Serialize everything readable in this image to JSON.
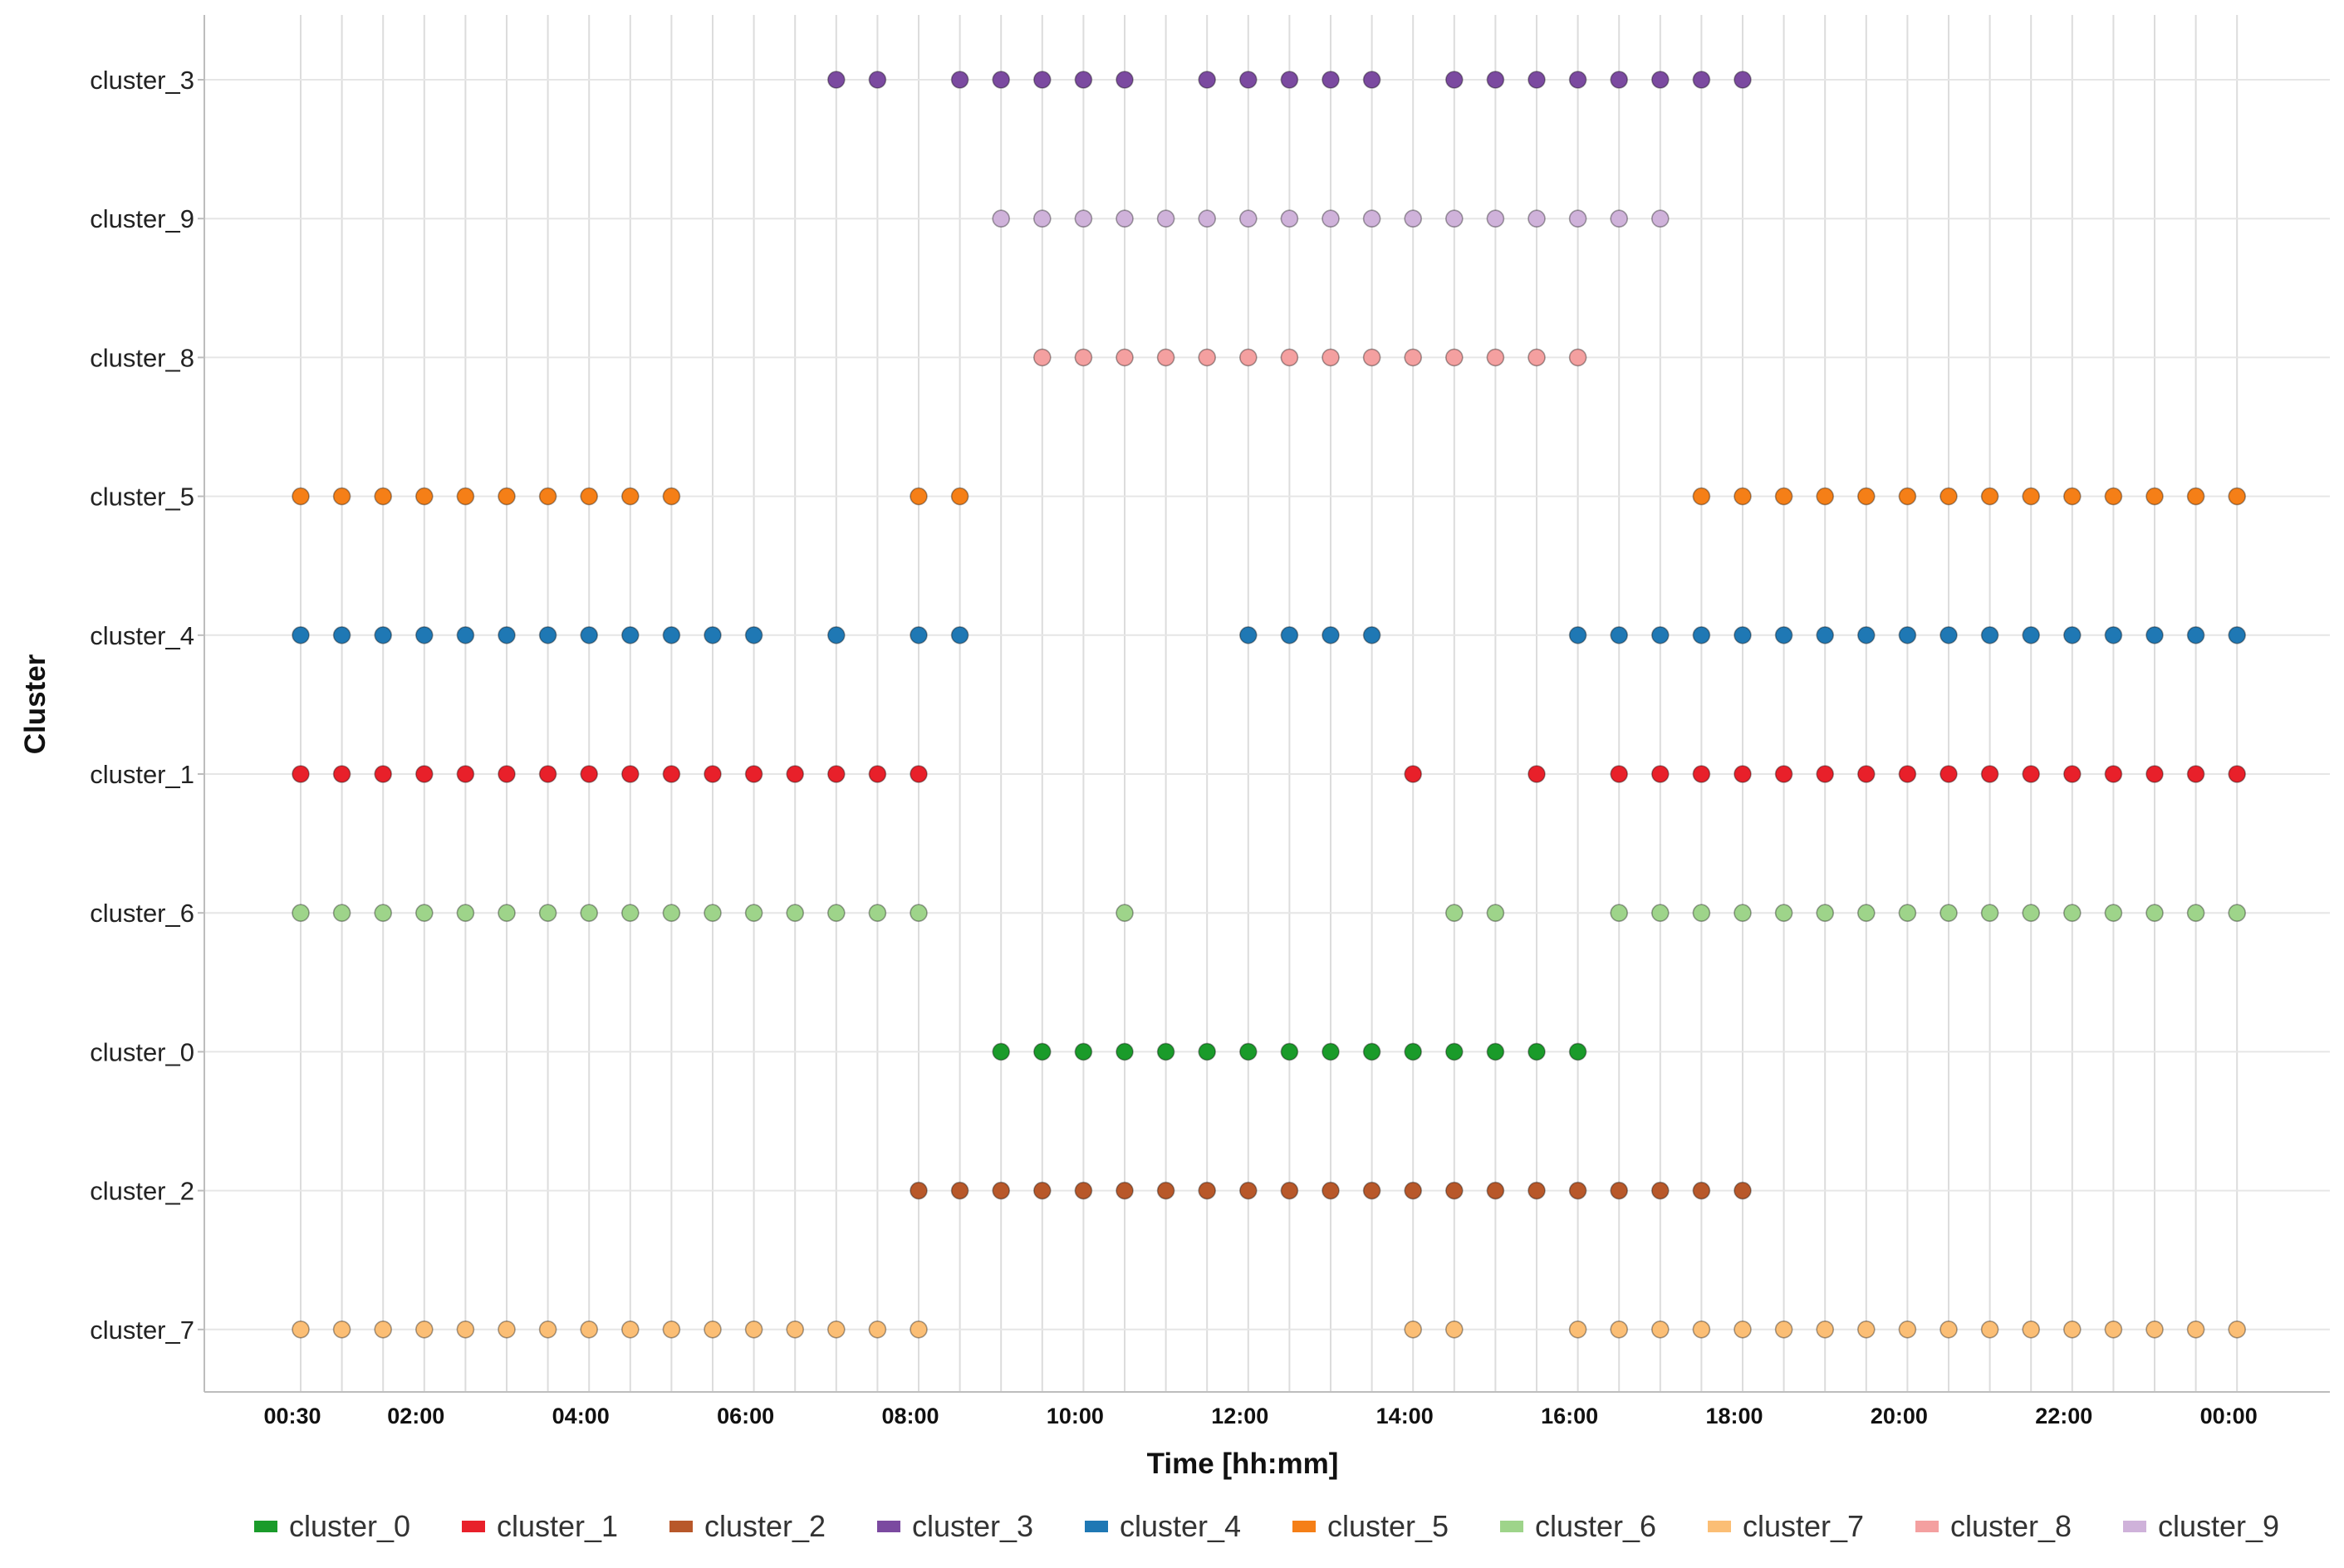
{
  "chart_data": {
    "type": "scatter",
    "title": "",
    "xlabel": "Time [hh:mm]",
    "ylabel": "Cluster",
    "x_unit": "hh:mm",
    "x_range": [
      "00:30",
      "24:00"
    ],
    "x_step": "00:30",
    "x_ticks": [
      "00:30",
      "02:00",
      "04:00",
      "06:00",
      "08:00",
      "10:00",
      "12:00",
      "14:00",
      "16:00",
      "18:00",
      "20:00",
      "22:00",
      "00:00"
    ],
    "y_categories": [
      "cluster_3",
      "cluster_9",
      "cluster_8",
      "cluster_5",
      "cluster_4",
      "cluster_1",
      "cluster_6",
      "cluster_0",
      "cluster_2",
      "cluster_7"
    ],
    "grid": true,
    "legend_position": "bottom",
    "legend": [
      "cluster_0",
      "cluster_1",
      "cluster_2",
      "cluster_3",
      "cluster_4",
      "cluster_5",
      "cluster_6",
      "cluster_7",
      "cluster_8",
      "cluster_9"
    ],
    "colors": {
      "cluster_0": "#1a9b2a",
      "cluster_1": "#e8202a",
      "cluster_2": "#b8582a",
      "cluster_3": "#7b4aa0",
      "cluster_4": "#1f78b4",
      "cluster_5": "#f57f17",
      "cluster_6": "#9ed48a",
      "cluster_7": "#fbbe75",
      "cluster_8": "#f4a0a0",
      "cluster_9": "#cfb2da"
    },
    "series": [
      {
        "name": "cluster_3",
        "x": [
          "07:00",
          "07:30",
          "08:30",
          "09:00",
          "09:30",
          "10:00",
          "10:30",
          "11:30",
          "12:00",
          "12:30",
          "13:00",
          "13:30",
          "14:30",
          "15:00",
          "15:30",
          "16:00",
          "16:30",
          "17:00",
          "17:30",
          "18:00"
        ]
      },
      {
        "name": "cluster_9",
        "x": [
          "09:00",
          "09:30",
          "10:00",
          "10:30",
          "11:00",
          "11:30",
          "12:00",
          "12:30",
          "13:00",
          "13:30",
          "14:00",
          "14:30",
          "15:00",
          "15:30",
          "16:00",
          "16:30",
          "17:00"
        ]
      },
      {
        "name": "cluster_8",
        "x": [
          "09:30",
          "10:00",
          "10:30",
          "11:00",
          "11:30",
          "12:00",
          "12:30",
          "13:00",
          "13:30",
          "14:00",
          "14:30",
          "15:00",
          "15:30",
          "16:00"
        ]
      },
      {
        "name": "cluster_5",
        "x": [
          "00:30",
          "01:00",
          "01:30",
          "02:00",
          "02:30",
          "03:00",
          "03:30",
          "04:00",
          "04:30",
          "05:00",
          "08:00",
          "08:30",
          "17:30",
          "18:00",
          "18:30",
          "19:00",
          "19:30",
          "20:00",
          "20:30",
          "21:00",
          "21:30",
          "22:00",
          "22:30",
          "23:00",
          "23:30",
          "24:00"
        ]
      },
      {
        "name": "cluster_4",
        "x": [
          "00:30",
          "01:00",
          "01:30",
          "02:00",
          "02:30",
          "03:00",
          "03:30",
          "04:00",
          "04:30",
          "05:00",
          "05:30",
          "06:00",
          "07:00",
          "08:00",
          "08:30",
          "12:00",
          "12:30",
          "13:00",
          "13:30",
          "16:00",
          "16:30",
          "17:00",
          "17:30",
          "18:00",
          "18:30",
          "19:00",
          "19:30",
          "20:00",
          "20:30",
          "21:00",
          "21:30",
          "22:00",
          "22:30",
          "23:00",
          "23:30",
          "24:00"
        ]
      },
      {
        "name": "cluster_1",
        "x": [
          "00:30",
          "01:00",
          "01:30",
          "02:00",
          "02:30",
          "03:00",
          "03:30",
          "04:00",
          "04:30",
          "05:00",
          "05:30",
          "06:00",
          "06:30",
          "07:00",
          "07:30",
          "08:00",
          "14:00",
          "15:30",
          "16:30",
          "17:00",
          "17:30",
          "18:00",
          "18:30",
          "19:00",
          "19:30",
          "20:00",
          "20:30",
          "21:00",
          "21:30",
          "22:00",
          "22:30",
          "23:00",
          "23:30",
          "24:00"
        ]
      },
      {
        "name": "cluster_6",
        "x": [
          "00:30",
          "01:00",
          "01:30",
          "02:00",
          "02:30",
          "03:00",
          "03:30",
          "04:00",
          "04:30",
          "05:00",
          "05:30",
          "06:00",
          "06:30",
          "07:00",
          "07:30",
          "08:00",
          "10:30",
          "14:30",
          "15:00",
          "16:30",
          "17:00",
          "17:30",
          "18:00",
          "18:30",
          "19:00",
          "19:30",
          "20:00",
          "20:30",
          "21:00",
          "21:30",
          "22:00",
          "22:30",
          "23:00",
          "23:30",
          "24:00"
        ]
      },
      {
        "name": "cluster_0",
        "x": [
          "09:00",
          "09:30",
          "10:00",
          "10:30",
          "11:00",
          "11:30",
          "12:00",
          "12:30",
          "13:00",
          "13:30",
          "14:00",
          "14:30",
          "15:00",
          "15:30",
          "16:00"
        ]
      },
      {
        "name": "cluster_2",
        "x": [
          "08:00",
          "08:30",
          "09:00",
          "09:30",
          "10:00",
          "10:30",
          "11:00",
          "11:30",
          "12:00",
          "12:30",
          "13:00",
          "13:30",
          "14:00",
          "14:30",
          "15:00",
          "15:30",
          "16:00",
          "16:30",
          "17:00",
          "17:30",
          "18:00"
        ]
      },
      {
        "name": "cluster_7",
        "x": [
          "00:30",
          "01:00",
          "01:30",
          "02:00",
          "02:30",
          "03:00",
          "03:30",
          "04:00",
          "04:30",
          "05:00",
          "05:30",
          "06:00",
          "06:30",
          "07:00",
          "07:30",
          "08:00",
          "14:00",
          "14:30",
          "16:00",
          "16:30",
          "17:00",
          "17:30",
          "18:00",
          "18:30",
          "19:00",
          "19:30",
          "20:00",
          "20:30",
          "21:00",
          "21:30",
          "22:00",
          "22:30",
          "23:00",
          "23:30",
          "24:00"
        ]
      }
    ]
  }
}
